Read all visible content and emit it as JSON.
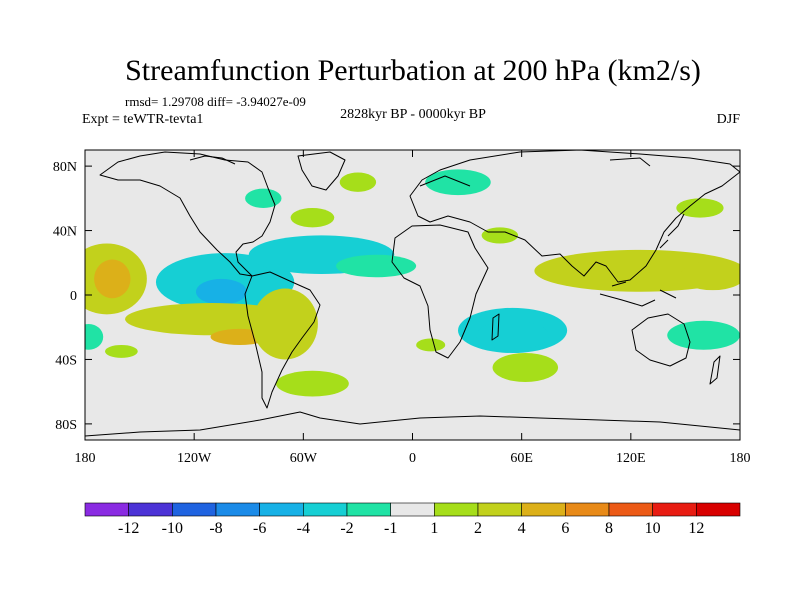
{
  "chart_data": {
    "type": "heatmap",
    "title": "Streamfunction Perturbation at 200 hPa (km2/s)",
    "stats_line": "rmsd= 1.29708 diff= -3.94027e-09",
    "experiment_label": "Expt = teWTR-tevta1",
    "period_label": "2828kyr BP - 0000kyr BP",
    "season_label": "DJF",
    "xlim": [
      -180,
      180
    ],
    "ylim": [
      -90,
      90
    ],
    "x_ticks": [
      {
        "value": -180,
        "label": "180"
      },
      {
        "value": -120,
        "label": "120W"
      },
      {
        "value": -60,
        "label": "60W"
      },
      {
        "value": 0,
        "label": "0"
      },
      {
        "value": 60,
        "label": "60E"
      },
      {
        "value": 120,
        "label": "120E"
      },
      {
        "value": 180,
        "label": "180"
      }
    ],
    "y_ticks": [
      {
        "value": 80,
        "label": "80N"
      },
      {
        "value": 40,
        "label": "40N"
      },
      {
        "value": 0,
        "label": "0"
      },
      {
        "value": -40,
        "label": "40S"
      },
      {
        "value": -80,
        "label": "80S"
      }
    ],
    "levels": [
      -12,
      -10,
      -8,
      -6,
      -4,
      -2,
      -1,
      1,
      2,
      4,
      6,
      8,
      10,
      12
    ],
    "level_labels": [
      "-12",
      "-10",
      "-8",
      "-6",
      "-4",
      "-2",
      "-1",
      "1",
      "2",
      "4",
      "6",
      "8",
      "10",
      "12"
    ],
    "colors": [
      "#8a2be2",
      "#4c33d6",
      "#1f63e0",
      "#1b8be8",
      "#17b1e6",
      "#16cfd4",
      "#20e3a5",
      "#e8e8e8",
      "#a6de1a",
      "#c2d11c",
      "#dcb019",
      "#e88a18",
      "#ec5a16",
      "#e81c12",
      "#d80000"
    ],
    "anomalies": [
      {
        "lon": -103,
        "lat": 8,
        "rx": 38,
        "ry": 18,
        "value": -2.5
      },
      {
        "lon": -105,
        "lat": 2,
        "rx": 14,
        "ry": 8,
        "value": -4.5
      },
      {
        "lon": -50,
        "lat": 25,
        "rx": 40,
        "ry": 12,
        "value": -2.5
      },
      {
        "lon": -20,
        "lat": 18,
        "rx": 22,
        "ry": 7,
        "value": -1.5
      },
      {
        "lon": 55,
        "lat": -22,
        "rx": 30,
        "ry": 14,
        "value": -2.5
      },
      {
        "lon": 55,
        "lat": -25,
        "rx": 20,
        "ry": 9,
        "value": -3.2
      },
      {
        "lon": 25,
        "lat": 70,
        "rx": 18,
        "ry": 8,
        "value": -1.5
      },
      {
        "lon": -82,
        "lat": 60,
        "rx": 10,
        "ry": 6,
        "value": -1.5
      },
      {
        "lon": 160,
        "lat": -25,
        "rx": 20,
        "ry": 9,
        "value": -1.5
      },
      {
        "lon": -178,
        "lat": -26,
        "rx": 8,
        "ry": 8,
        "value": -1.5
      },
      {
        "lon": -168,
        "lat": 10,
        "rx": 22,
        "ry": 22,
        "value": 3
      },
      {
        "lon": -165,
        "lat": 10,
        "rx": 10,
        "ry": 12,
        "value": 4.5
      },
      {
        "lon": -110,
        "lat": -15,
        "rx": 48,
        "ry": 10,
        "value": 2.5
      },
      {
        "lon": -95,
        "lat": -26,
        "rx": 16,
        "ry": 5,
        "value": 4.5
      },
      {
        "lon": -70,
        "lat": -18,
        "rx": 18,
        "ry": 22,
        "value": 2.5
      },
      {
        "lon": -55,
        "lat": -55,
        "rx": 20,
        "ry": 8,
        "value": 1.5
      },
      {
        "lon": 125,
        "lat": 15,
        "rx": 58,
        "ry": 13,
        "value": 2
      },
      {
        "lon": 165,
        "lat": 12,
        "rx": 18,
        "ry": 9,
        "value": 3.5
      },
      {
        "lon": 158,
        "lat": 54,
        "rx": 13,
        "ry": 6,
        "value": 1.5
      },
      {
        "lon": 62,
        "lat": -45,
        "rx": 18,
        "ry": 9,
        "value": 1.5
      },
      {
        "lon": -30,
        "lat": 70,
        "rx": 10,
        "ry": 6,
        "value": 1.5
      },
      {
        "lon": 10,
        "lat": -31,
        "rx": 8,
        "ry": 4,
        "value": 1.5
      },
      {
        "lon": -160,
        "lat": -35,
        "rx": 9,
        "ry": 4,
        "value": 1.5
      },
      {
        "lon": 48,
        "lat": 37,
        "rx": 10,
        "ry": 5,
        "value": 1.5
      },
      {
        "lon": -55,
        "lat": 48,
        "rx": 12,
        "ry": 6,
        "value": 1.5
      }
    ]
  }
}
